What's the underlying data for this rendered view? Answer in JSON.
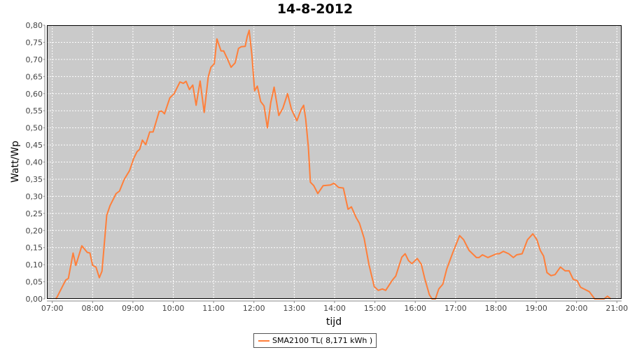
{
  "chart_data": {
    "type": "line",
    "title": "14-8-2012",
    "xlabel": "tijd",
    "ylabel": "Watt/Wp",
    "xlim": [
      "06:52",
      "21:07"
    ],
    "ylim": [
      0,
      0.8
    ],
    "grid": true,
    "legend_position": "bottom",
    "background_color": "#cacaca",
    "x_ticks": [
      "07:00",
      "08:00",
      "09:00",
      "10:00",
      "11:00",
      "12:00",
      "13:00",
      "14:00",
      "15:00",
      "16:00",
      "17:00",
      "18:00",
      "19:00",
      "20:00",
      "21:00"
    ],
    "y_ticks": [
      "0,00",
      "0,05",
      "0,10",
      "0,15",
      "0,20",
      "0,25",
      "0,30",
      "0,35",
      "0,40",
      "0,45",
      "0,50",
      "0,55",
      "0,60",
      "0,65",
      "0,70",
      "0,75",
      "0,80"
    ],
    "series": [
      {
        "name": "SMA2100 TL( 8,171 kWh )",
        "color": "#ff7f3a",
        "x": [
          "07:05",
          "07:07",
          "07:20",
          "07:24",
          "07:31",
          "07:35",
          "07:44",
          "07:52",
          "07:56",
          "08:00",
          "08:05",
          "08:10",
          "08:14",
          "08:21",
          "08:26",
          "08:35",
          "08:40",
          "08:47",
          "08:55",
          "09:01",
          "09:06",
          "09:10",
          "09:14",
          "09:19",
          "09:25",
          "09:30",
          "09:39",
          "09:43",
          "09:47",
          "09:55",
          "10:01",
          "10:10",
          "10:15",
          "10:19",
          "10:24",
          "10:29",
          "10:34",
          "10:40",
          "10:46",
          "10:52",
          "10:56",
          "11:01",
          "11:05",
          "11:11",
          "11:15",
          "11:20",
          "11:26",
          "11:32",
          "11:37",
          "11:41",
          "11:47",
          "11:50",
          "11:53",
          "11:57",
          "12:01",
          "12:05",
          "12:10",
          "12:15",
          "12:20",
          "12:25",
          "12:30",
          "12:37",
          "12:43",
          "12:50",
          "12:56",
          "13:04",
          "13:10",
          "13:14",
          "13:17",
          "13:21",
          "13:24",
          "13:29",
          "13:35",
          "13:43",
          "13:54",
          "13:59",
          "14:06",
          "14:13",
          "14:20",
          "14:25",
          "14:32",
          "14:37",
          "14:44",
          "14:51",
          "14:59",
          "15:05",
          "15:11",
          "15:16",
          "15:26",
          "15:31",
          "15:40",
          "15:45",
          "15:50",
          "15:55",
          "16:03",
          "16:09",
          "16:14",
          "16:21",
          "16:25",
          "16:30",
          "16:35",
          "16:41",
          "16:47",
          "16:56",
          "17:06",
          "17:12",
          "17:20",
          "17:31",
          "17:35",
          "17:40",
          "17:48",
          "18:01",
          "18:05",
          "18:11",
          "18:19",
          "18:26",
          "18:31",
          "18:39",
          "18:47",
          "18:55",
          "19:01",
          "19:06",
          "19:11",
          "19:16",
          "19:22",
          "19:28",
          "19:36",
          "19:43",
          "19:49",
          "19:55",
          "20:01",
          "20:06",
          "20:19",
          "20:27",
          "20:41",
          "20:46",
          "20:51"
        ],
        "y": [
          0,
          0.005,
          0.055,
          0.06,
          0.134,
          0.098,
          0.155,
          0.136,
          0.134,
          0.098,
          0.093,
          0.062,
          0.081,
          0.245,
          0.273,
          0.308,
          0.315,
          0.349,
          0.375,
          0.41,
          0.43,
          0.437,
          0.464,
          0.451,
          0.488,
          0.488,
          0.548,
          0.549,
          0.541,
          0.588,
          0.599,
          0.634,
          0.63,
          0.636,
          0.612,
          0.625,
          0.566,
          0.637,
          0.545,
          0.649,
          0.677,
          0.687,
          0.76,
          0.725,
          0.725,
          0.704,
          0.677,
          0.69,
          0.732,
          0.737,
          0.738,
          0.766,
          0.785,
          0.711,
          0.608,
          0.622,
          0.577,
          0.564,
          0.5,
          0.574,
          0.619,
          0.536,
          0.557,
          0.6,
          0.553,
          0.521,
          0.553,
          0.566,
          0.526,
          0.444,
          0.341,
          0.331,
          0.308,
          0.331,
          0.333,
          0.338,
          0.326,
          0.324,
          0.262,
          0.269,
          0.238,
          0.221,
          0.177,
          0.101,
          0.036,
          0.025,
          0.029,
          0.025,
          0.055,
          0.067,
          0.122,
          0.132,
          0.112,
          0.103,
          0.118,
          0.101,
          0.06,
          0.012,
          0,
          0,
          0.029,
          0.043,
          0.088,
          0.136,
          0.185,
          0.173,
          0.142,
          0.121,
          0.121,
          0.129,
          0.121,
          0.132,
          0.132,
          0.139,
          0.132,
          0.121,
          0.129,
          0.132,
          0.173,
          0.19,
          0.173,
          0.142,
          0.125,
          0.077,
          0.068,
          0.071,
          0.093,
          0.082,
          0.082,
          0.057,
          0.053,
          0.034,
          0.021,
          0,
          0,
          0.008,
          0
        ]
      }
    ]
  }
}
